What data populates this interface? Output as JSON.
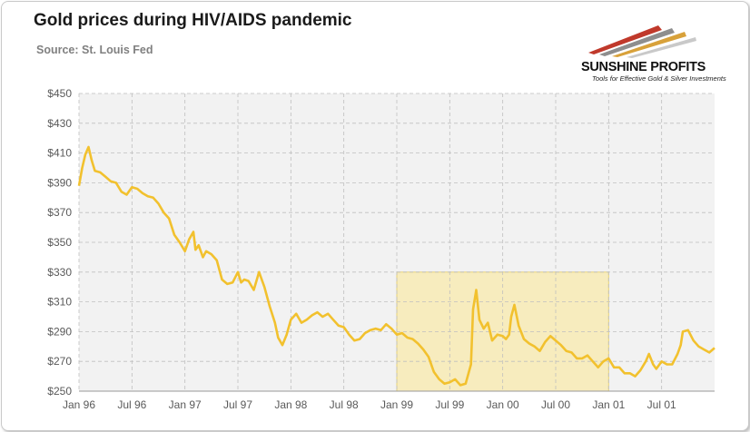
{
  "header": {
    "title": "Gold prices during HIV/AIDS pandemic",
    "subtitle": "Source: St. Louis Fed"
  },
  "logo": {
    "name": "SUNSHINE PROFITS",
    "tagline": "Tools for Effective Gold & Silver Investments"
  },
  "colors": {
    "line": "#f2c12e",
    "highlight_fill": "#f7ecbe",
    "highlight_border": "#e6d27a",
    "plot_background": "#f2f2f2",
    "grid": "#bfbfbf"
  },
  "chart_data": {
    "type": "line",
    "title": "Gold prices during HIV/AIDS pandemic",
    "xlabel": "",
    "ylabel": "",
    "ylim": [
      250,
      450
    ],
    "xlim": [
      "1996-01",
      "2002-01"
    ],
    "y_ticks": [
      "$450",
      "$430",
      "$410",
      "$390",
      "$370",
      "$350",
      "$330",
      "$310",
      "$290",
      "$270",
      "$250"
    ],
    "y_tick_values": [
      450,
      430,
      410,
      390,
      370,
      350,
      330,
      310,
      290,
      270,
      250
    ],
    "x_ticks": [
      "Jan 96",
      "Jul 96",
      "Jan 97",
      "Jul 97",
      "Jan 98",
      "Jul 98",
      "Jan 99",
      "Jul 99",
      "Jan 00",
      "Jul 00",
      "Jan 01",
      "Jul 01"
    ],
    "x_tick_values": [
      1996.0,
      1996.5,
      1997.0,
      1997.5,
      1998.0,
      1998.5,
      1999.0,
      1999.5,
      2000.0,
      2000.5,
      2001.0,
      2001.5
    ],
    "grid": true,
    "highlight_region": {
      "x": [
        1999.0,
        2001.0
      ],
      "y": [
        250,
        330
      ]
    },
    "series": [
      {
        "x": [
          1996.0,
          1996.03,
          1996.06,
          1996.09,
          1996.12,
          1996.15,
          1996.2,
          1996.25,
          1996.3,
          1996.35,
          1996.4,
          1996.45,
          1996.5,
          1996.55,
          1996.6,
          1996.65,
          1996.7,
          1996.75,
          1996.8,
          1996.85,
          1996.9,
          1996.95,
          1997.0,
          1997.04,
          1997.08,
          1997.1,
          1997.13,
          1997.17,
          1997.2,
          1997.25,
          1997.3,
          1997.35,
          1997.4,
          1997.45,
          1997.5,
          1997.53,
          1997.56,
          1997.6,
          1997.65,
          1997.7,
          1997.75,
          1997.8,
          1997.85,
          1997.88,
          1997.92,
          1997.96,
          1998.0,
          1998.05,
          1998.1,
          1998.15,
          1998.2,
          1998.25,
          1998.3,
          1998.35,
          1998.4,
          1998.45,
          1998.5,
          1998.55,
          1998.6,
          1998.65,
          1998.7,
          1998.75,
          1998.8,
          1998.85,
          1998.9,
          1998.95,
          1999.0,
          1999.05,
          1999.1,
          1999.15,
          1999.2,
          1999.25,
          1999.3,
          1999.35,
          1999.4,
          1999.45,
          1999.5,
          1999.55,
          1999.6,
          1999.65,
          1999.7,
          1999.72,
          1999.75,
          1999.78,
          1999.82,
          1999.86,
          1999.9,
          1999.95,
          2000.0,
          2000.03,
          2000.06,
          2000.08,
          2000.11,
          2000.15,
          2000.2,
          2000.25,
          2000.3,
          2000.35,
          2000.4,
          2000.45,
          2000.5,
          2000.55,
          2000.6,
          2000.65,
          2000.7,
          2000.75,
          2000.8,
          2000.85,
          2000.9,
          2000.95,
          2001.0,
          2001.05,
          2001.1,
          2001.15,
          2001.2,
          2001.25,
          2001.3,
          2001.35,
          2001.38,
          2001.42,
          2001.45,
          2001.5,
          2001.55,
          2001.6,
          2001.65,
          2001.68,
          2001.7,
          2001.75,
          2001.8,
          2001.85,
          2001.9,
          2001.95,
          2002.0
        ],
        "values": [
          388,
          400,
          409,
          414,
          405,
          398,
          397,
          394,
          391,
          390,
          384,
          382,
          387,
          386,
          383,
          381,
          380,
          376,
          370,
          366,
          355,
          350,
          344,
          352,
          357,
          345,
          348,
          340,
          344,
          342,
          338,
          325,
          322,
          323,
          330,
          323,
          325,
          324,
          318,
          330,
          320,
          307,
          296,
          286,
          281,
          288,
          298,
          302,
          296,
          298,
          301,
          303,
          300,
          302,
          298,
          294,
          293,
          288,
          284,
          285,
          289,
          291,
          292,
          291,
          295,
          292,
          288,
          289,
          286,
          285,
          282,
          278,
          273,
          263,
          258,
          255,
          256,
          258,
          254,
          255,
          268,
          305,
          318,
          298,
          292,
          296,
          284,
          288,
          287,
          285,
          288,
          300,
          308,
          294,
          285,
          282,
          280,
          277,
          283,
          287,
          284,
          281,
          277,
          276,
          272,
          272,
          274,
          270,
          266,
          270,
          272,
          266,
          266,
          262,
          262,
          260,
          264,
          270,
          275,
          268,
          265,
          270,
          268,
          268,
          275,
          281,
          290,
          291,
          284,
          280,
          278,
          276,
          279
        ]
      }
    ]
  }
}
